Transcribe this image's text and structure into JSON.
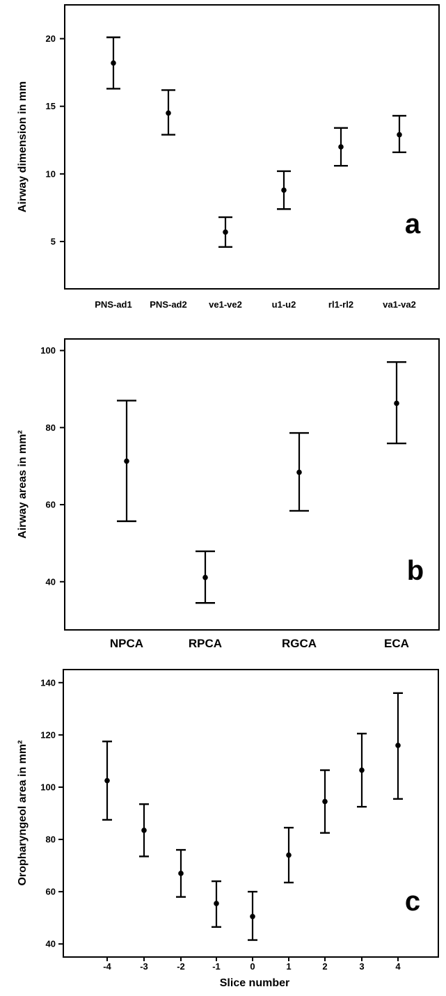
{
  "chart_data": [
    {
      "type": "errorbar",
      "panel_label": "a",
      "ylabel": "Airway dimension in mm",
      "xlabel": "",
      "ylim": [
        1.5,
        22.5
      ],
      "yticks": [
        5,
        10,
        15,
        20
      ],
      "categories": [
        "PNS-ad1",
        "PNS-ad2",
        "ve1-ve2",
        "u1-u2",
        "rl1-rl2",
        "va1-va2"
      ],
      "means": [
        18.2,
        14.5,
        5.7,
        8.8,
        12.0,
        12.9
      ],
      "lower": [
        16.3,
        12.9,
        4.6,
        7.4,
        10.6,
        11.6
      ],
      "upper": [
        20.1,
        16.2,
        6.8,
        10.2,
        13.4,
        14.3
      ]
    },
    {
      "type": "errorbar",
      "panel_label": "b",
      "ylabel": "Airway  areas in mm²",
      "xlabel": "",
      "ylim": [
        27.5,
        103
      ],
      "yticks": [
        40,
        60,
        80,
        100
      ],
      "categories": [
        "NPCA",
        "RPCA",
        "RGCA",
        "ECA"
      ],
      "means": [
        71.3,
        41.1,
        68.4,
        86.3
      ],
      "lower": [
        55.7,
        34.5,
        58.4,
        75.9
      ],
      "upper": [
        87.0,
        47.9,
        78.6,
        97.0
      ]
    },
    {
      "type": "errorbar",
      "panel_label": "c",
      "ylabel": "Oropharyngeol area in mm²",
      "xlabel": "Slice number",
      "ylim": [
        35,
        145
      ],
      "yticks": [
        40,
        60,
        80,
        100,
        120,
        140
      ],
      "categories": [
        "-4",
        "-3",
        "-2",
        "-1",
        "0",
        "1",
        "2",
        "3",
        "4"
      ],
      "means": [
        102.5,
        83.5,
        67.0,
        55.5,
        50.5,
        74.0,
        94.5,
        106.5,
        116.0
      ],
      "lower": [
        87.5,
        73.5,
        58.0,
        46.5,
        41.5,
        63.5,
        82.5,
        92.5,
        95.5
      ],
      "upper": [
        117.5,
        93.5,
        76.0,
        64.0,
        60.0,
        84.5,
        106.5,
        120.5,
        136.0
      ]
    }
  ]
}
